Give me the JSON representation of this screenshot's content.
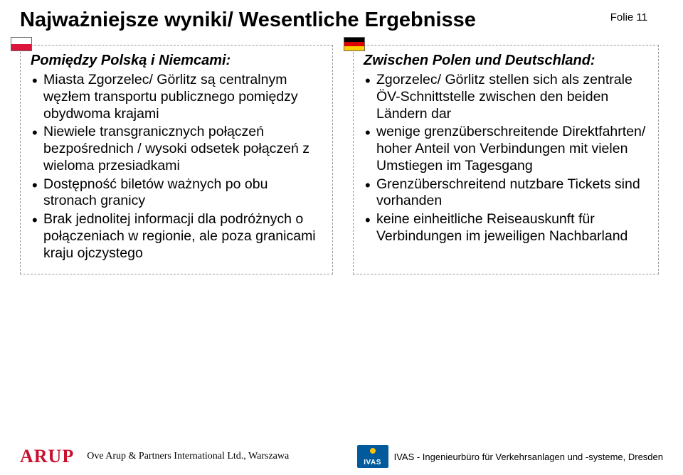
{
  "title": "Najważniejsze wyniki/ Wesentliche Ergebnisse",
  "slide_number": "Folie 11",
  "left": {
    "heading": "Pomiędzy Polską i Niemcami:",
    "bullets": [
      "Miasta Zgorzelec/ Görlitz są centralnym węzłem transportu publicznego pomiędzy obydwoma krajami",
      "Niewiele transgranicznych połączeń bezpośrednich / wysoki odsetek połączeń z wieloma przesiadkami",
      "Dostępność biletów ważnych po obu stronach granicy",
      "Brak jednolitej informacji dla podróżnych o połączeniach w regionie, ale poza granicami kraju ojczystego"
    ]
  },
  "right": {
    "heading": "Zwischen Polen und Deutschland:",
    "bullets": [
      "Zgorzelec/ Görlitz stellen sich als zentrale ÖV-Schnittstelle zwischen den beiden Ländern dar",
      "wenige grenzüberschreitende Direktfahrten/ hoher Anteil von Verbindungen mit vielen Umstiegen im Tagesgang",
      "Grenzüberschreitend nutzbare Tickets sind vorhanden",
      "keine einheitliche Reiseauskunft für Verbindungen im jeweiligen Nachbarland"
    ]
  },
  "footer": {
    "arup": "ARUP",
    "left_text": "Ove Arup & Partners International Ltd., Warszawa",
    "ivas": "IVAS",
    "right_text": "IVAS - Ingenieurbüro für Verkehrsanlagen und -systeme, Dresden"
  },
  "colors": {
    "title": "#000000",
    "arup_red": "#c8102e",
    "ivas_blue": "#005a9c",
    "border_dash": "#999999"
  }
}
